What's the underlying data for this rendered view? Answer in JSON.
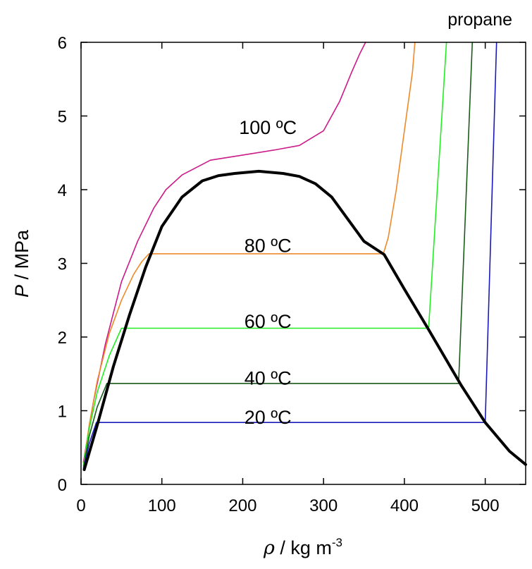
{
  "chart_data": {
    "type": "line",
    "title": "propane",
    "xlabel": {
      "symbol": "ρ",
      "text": " / kg m",
      "sup": "-3"
    },
    "ylabel": {
      "symbol": "P",
      "text": " / MPa"
    },
    "xlim": [
      0,
      550
    ],
    "ylim": [
      0,
      6
    ],
    "xticks": [
      0,
      100,
      200,
      300,
      400,
      500
    ],
    "yticks": [
      0,
      1,
      2,
      3,
      4,
      5,
      6
    ],
    "grid": false,
    "legend": "none",
    "series": [
      {
        "key": "saturation",
        "color": "#000000",
        "x": [
          4,
          20,
          40,
          60,
          80,
          100,
          125,
          150,
          170,
          190,
          220,
          250,
          270,
          290,
          310,
          330,
          350,
          375,
          400,
          430,
          470,
          500,
          530,
          550
        ],
        "y": [
          0.2,
          0.8,
          1.6,
          2.3,
          2.95,
          3.5,
          3.9,
          4.12,
          4.19,
          4.22,
          4.25,
          4.22,
          4.18,
          4.08,
          3.9,
          3.6,
          3.3,
          3.12,
          2.65,
          2.1,
          1.35,
          0.84,
          0.45,
          0.27
        ]
      },
      {
        "key": "iso-100",
        "label": "100 ºC",
        "color": "#cc1a88",
        "x": [
          3,
          15,
          30,
          50,
          70,
          90,
          105,
          125,
          160,
          200,
          240,
          270,
          300,
          320,
          335,
          345,
          352
        ],
        "y": [
          0.3,
          1.1,
          1.9,
          2.75,
          3.3,
          3.75,
          4.0,
          4.2,
          4.4,
          4.47,
          4.54,
          4.6,
          4.8,
          5.2,
          5.6,
          5.85,
          6.0
        ]
      },
      {
        "key": "iso-80",
        "label": "80 ºC",
        "color": "#ee8a2a",
        "x": [
          3,
          10,
          20,
          35,
          50,
          65,
          75,
          84,
          374,
          380,
          390,
          400,
          410,
          413
        ],
        "y": [
          0.25,
          0.8,
          1.4,
          2.05,
          2.5,
          2.85,
          3.02,
          3.13,
          3.13,
          3.35,
          4.0,
          4.8,
          5.6,
          6.0
        ]
      },
      {
        "key": "iso-60",
        "label": "60 ºC",
        "color": "#22ee22",
        "x": [
          3,
          10,
          20,
          35,
          50,
          430,
          452
        ],
        "y": [
          0.25,
          0.75,
          1.25,
          1.75,
          2.12,
          2.12,
          6.0
        ]
      },
      {
        "key": "iso-40",
        "label": "40 ºC",
        "color": "#1a5c1a",
        "x": [
          3,
          10,
          20,
          32,
          467,
          484
        ],
        "y": [
          0.22,
          0.65,
          1.05,
          1.37,
          1.37,
          6.0
        ]
      },
      {
        "key": "iso-20",
        "label": "20 ºC",
        "color": "#1a1ab8",
        "x": [
          3,
          10,
          19,
          500,
          514
        ],
        "y": [
          0.2,
          0.55,
          0.84,
          0.84,
          6.0
        ]
      }
    ],
    "annotations": [
      {
        "text": "100 ºC",
        "x": 205,
        "y": 4.85
      },
      {
        "text": "80 ºC",
        "x": 205,
        "y": 3.25
      },
      {
        "text": "60 ºC",
        "x": 205,
        "y": 2.22
      },
      {
        "text": "40 ºC",
        "x": 205,
        "y": 1.45
      },
      {
        "text": "20 ºC",
        "x": 205,
        "y": 0.92
      }
    ]
  }
}
